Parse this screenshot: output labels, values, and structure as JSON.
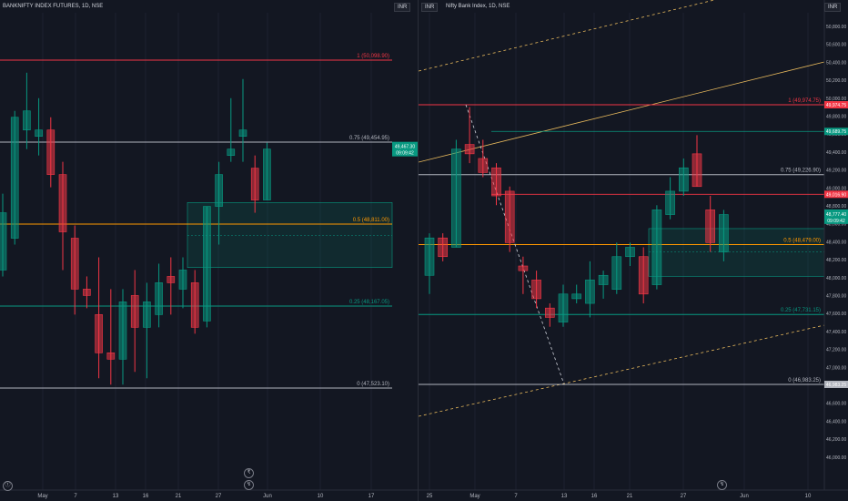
{
  "left_chart": {
    "symbol": "BANKNIFTY INDEX FUTURES, 1D, NSE",
    "currency": "INR",
    "fib_levels": [
      {
        "label": "1 (50,098.90)",
        "color": "#f23645"
      },
      {
        "label": "0.75 (49,454.95)",
        "color": "#b2b5be"
      },
      {
        "label": "0.5 (48,811.00)",
        "color": "#ff9800"
      },
      {
        "label": "0.25 (48,167.05)",
        "color": "#089981"
      },
      {
        "label": "0 (47,523.10)",
        "color": "#b2b5be"
      }
    ],
    "price_tag_top": "49,467.30",
    "price_tag_bottom": "09:09:42",
    "time_axis": [
      "May",
      "7",
      "13",
      "16",
      "21",
      "27",
      "Jun",
      "10",
      "17"
    ],
    "candles": [
      {
        "o": 48450,
        "h": 49050,
        "l": 48400,
        "c": 48900
      },
      {
        "o": 48700,
        "h": 49700,
        "l": 48650,
        "c": 49650
      },
      {
        "o": 49550,
        "h": 50000,
        "l": 49400,
        "c": 49700
      },
      {
        "o": 49500,
        "h": 49800,
        "l": 49350,
        "c": 49550
      },
      {
        "o": 49550,
        "h": 49650,
        "l": 49100,
        "c": 49200
      },
      {
        "o": 49200,
        "h": 49300,
        "l": 48450,
        "c": 48750
      },
      {
        "o": 48700,
        "h": 48800,
        "l": 48100,
        "c": 48300
      },
      {
        "o": 48300,
        "h": 48400,
        "l": 48150,
        "c": 48250
      },
      {
        "o": 48100,
        "h": 48550,
        "l": 47600,
        "c": 47800
      },
      {
        "o": 47800,
        "h": 48300,
        "l": 47550,
        "c": 47750
      },
      {
        "o": 47750,
        "h": 48300,
        "l": 47550,
        "c": 48200
      },
      {
        "o": 48250,
        "h": 48450,
        "l": 47650,
        "c": 48000
      },
      {
        "o": 48000,
        "h": 48350,
        "l": 47600,
        "c": 48200
      },
      {
        "o": 48100,
        "h": 48500,
        "l": 48000,
        "c": 48350
      },
      {
        "o": 48400,
        "h": 48550,
        "l": 48100,
        "c": 48350
      },
      {
        "o": 48300,
        "h": 48550,
        "l": 48150,
        "c": 48450
      },
      {
        "o": 48350,
        "h": 48450,
        "l": 47950,
        "c": 48000
      },
      {
        "o": 48050,
        "h": 48950,
        "l": 48000,
        "c": 48950
      },
      {
        "o": 48950,
        "h": 49300,
        "l": 48650,
        "c": 49200
      },
      {
        "o": 49350,
        "h": 49800,
        "l": 49300,
        "c": 49400
      },
      {
        "o": 49500,
        "h": 49950,
        "l": 49300,
        "c": 49550
      },
      {
        "o": 49250,
        "h": 49350,
        "l": 48900,
        "c": 49000
      },
      {
        "o": 49000,
        "h": 49450,
        "l": 49000,
        "c": 49400
      }
    ]
  },
  "right_chart": {
    "symbol": "Nifty Bank Index, 1D, NSE",
    "currency": "INR",
    "price_axis": [
      "50,800.00",
      "50,600.00",
      "50,400.00",
      "50,200.00",
      "50,000.00",
      "49,800.00",
      "49,600.00",
      "49,400.00",
      "49,200.00",
      "49,000.00",
      "48,800.00",
      "48,600.00",
      "48,400.00",
      "48,200.00",
      "48,000.00",
      "47,800.00",
      "47,600.00",
      "47,400.00",
      "47,200.00",
      "47,000.00",
      "46,800.00",
      "46,600.00",
      "46,400.00",
      "46,200.00",
      "46,000.00"
    ],
    "fib_levels": [
      {
        "label": "1 (49,974.75)",
        "color": "#f23645"
      },
      {
        "label": "0.75 (49,226.90)",
        "color": "#b2b5be"
      },
      {
        "label": "0.5 (48,479.00)",
        "color": "#ff9800"
      },
      {
        "label": "0.25 (47,731.15)",
        "color": "#089981"
      },
      {
        "label": "0 (46,983.25)",
        "color": "#b2b5be"
      }
    ],
    "tags": {
      "fib1": "49,974.75",
      "green_top": "49,689.75",
      "red_mid": "49,016.90",
      "price": "48,777.40",
      "price_time": "09:09:42",
      "fib0": "46,983.25"
    },
    "time_axis": [
      "25",
      "May",
      "7",
      "13",
      "16",
      "21",
      "27",
      "Jun",
      "10"
    ],
    "candles": [
      {
        "o": 48150,
        "h": 48600,
        "l": 47950,
        "c": 48550
      },
      {
        "o": 48550,
        "h": 48600,
        "l": 48300,
        "c": 48350
      },
      {
        "o": 48450,
        "h": 49600,
        "l": 48450,
        "c": 49500
      },
      {
        "o": 49550,
        "h": 49950,
        "l": 49350,
        "c": 49450
      },
      {
        "o": 49400,
        "h": 49600,
        "l": 49200,
        "c": 49250
      },
      {
        "o": 49300,
        "h": 49350,
        "l": 48900,
        "c": 49000
      },
      {
        "o": 49050,
        "h": 49100,
        "l": 48400,
        "c": 48500
      },
      {
        "o": 48250,
        "h": 48350,
        "l": 47950,
        "c": 48200
      },
      {
        "o": 48100,
        "h": 48200,
        "l": 47800,
        "c": 47900
      },
      {
        "o": 47800,
        "h": 47850,
        "l": 47600,
        "c": 47700
      },
      {
        "o": 47650,
        "h": 48050,
        "l": 47600,
        "c": 47950
      },
      {
        "o": 47900,
        "h": 48050,
        "l": 47850,
        "c": 47950
      },
      {
        "o": 47850,
        "h": 48300,
        "l": 47700,
        "c": 48100
      },
      {
        "o": 48050,
        "h": 48200,
        "l": 47900,
        "c": 48150
      },
      {
        "o": 48000,
        "h": 48500,
        "l": 47950,
        "c": 48350
      },
      {
        "o": 48350,
        "h": 48500,
        "l": 48250,
        "c": 48450
      },
      {
        "o": 48350,
        "h": 48450,
        "l": 47850,
        "c": 47950
      },
      {
        "o": 48050,
        "h": 48900,
        "l": 48000,
        "c": 48850
      },
      {
        "o": 48800,
        "h": 49200,
        "l": 48750,
        "c": 49050
      },
      {
        "o": 49050,
        "h": 49400,
        "l": 49000,
        "c": 49300
      },
      {
        "o": 49450,
        "h": 49650,
        "l": 49100,
        "c": 49100
      },
      {
        "o": 48850,
        "h": 49000,
        "l": 48400,
        "c": 48500
      },
      {
        "o": 48400,
        "h": 48850,
        "l": 48300,
        "c": 48800
      }
    ]
  },
  "colors": {
    "bull": "#089981",
    "bear": "#f23645",
    "bull_fill": "rgba(8,153,129,0.55)",
    "bear_fill": "rgba(242,54,69,0.55)"
  }
}
